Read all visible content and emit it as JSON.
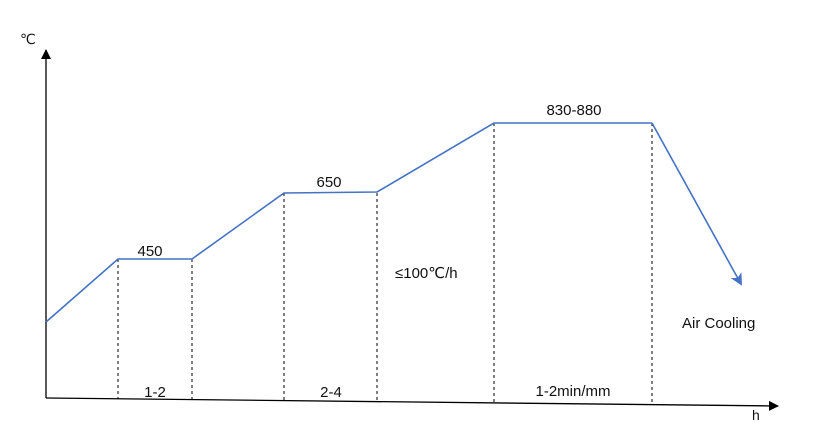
{
  "colors": {
    "curve": "#4472C4",
    "axis": "#000000",
    "guide": "#000000",
    "text": "#111111"
  },
  "axes": {
    "y_unit": "℃",
    "x_unit": "h"
  },
  "holds": [
    {
      "temperature_label": "450",
      "duration_label": "1-2"
    },
    {
      "temperature_label": "650",
      "duration_label": "2-4"
    },
    {
      "temperature_label": "830-880",
      "duration_label": "1-2min/mm"
    }
  ],
  "heating_rate_label": "≤100℃/h",
  "cooling_label": "Air Cooling"
}
